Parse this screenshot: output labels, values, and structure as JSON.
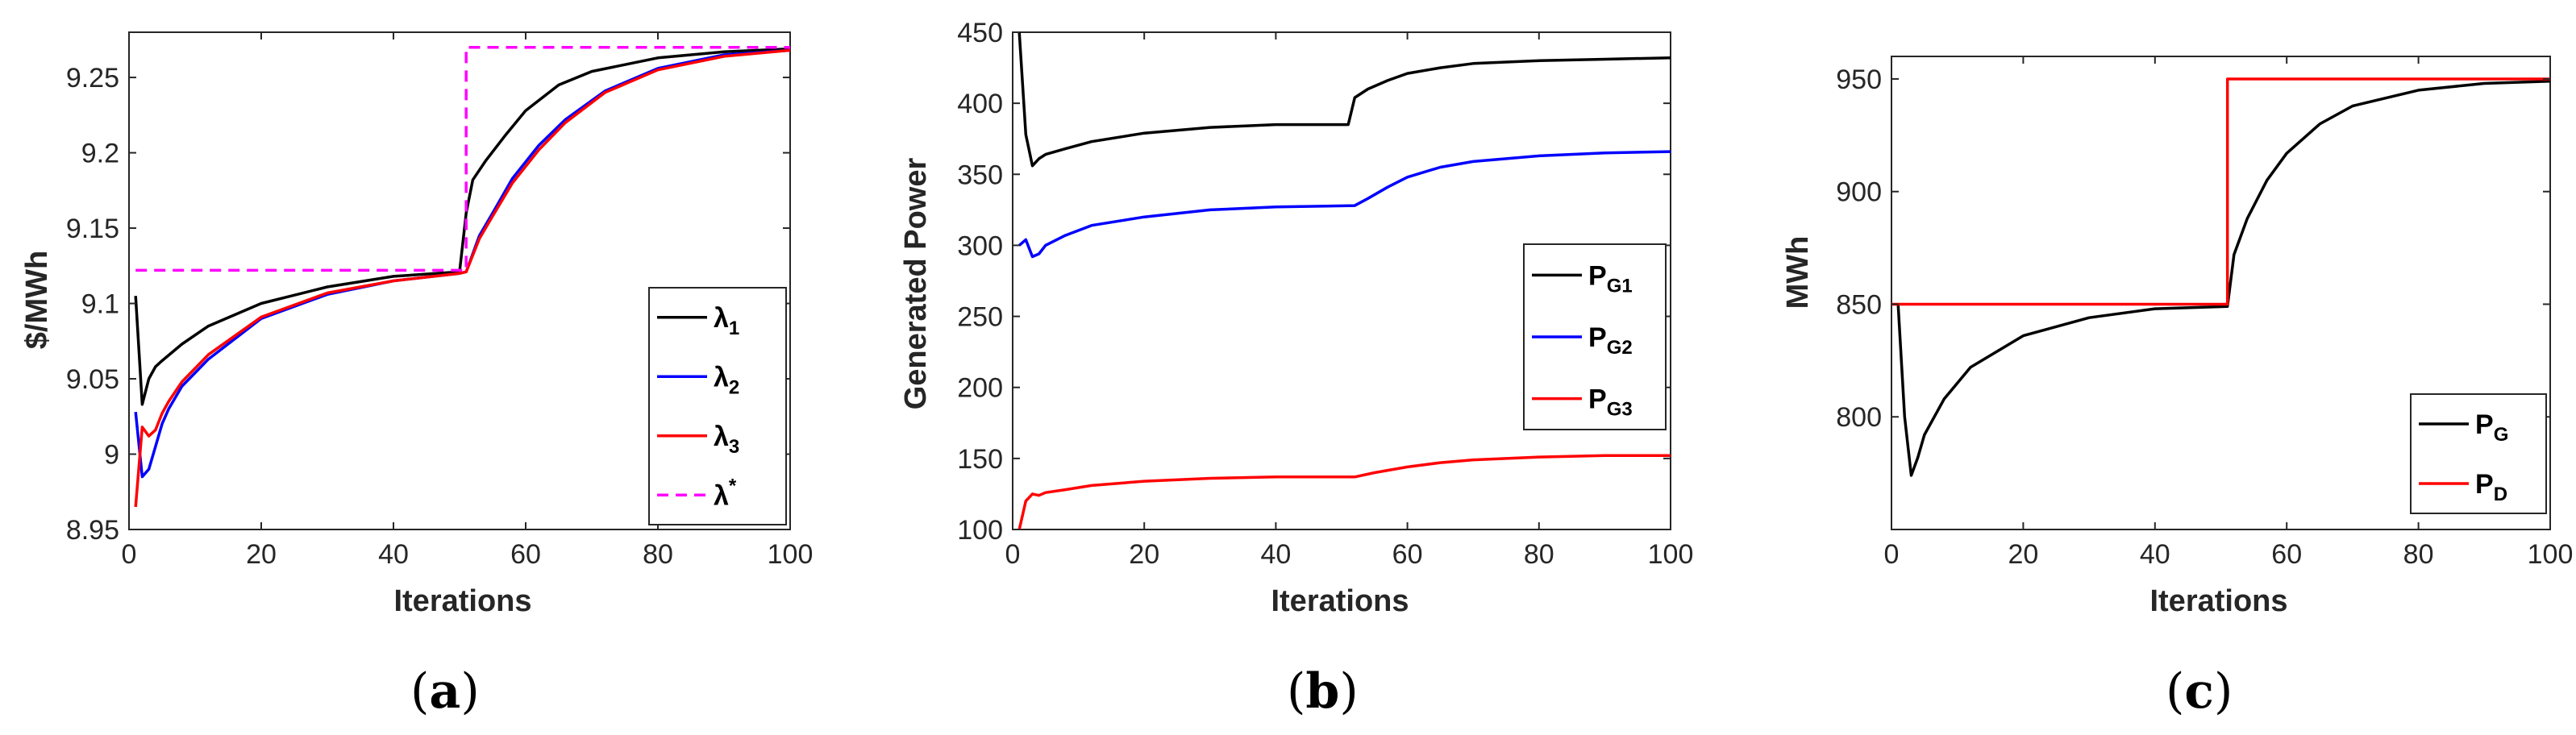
{
  "panels": [
    {
      "id": "a",
      "panel_label": {
        "open": "(",
        "letter": "a",
        "close": ")"
      }
    },
    {
      "id": "b",
      "panel_label": {
        "open": "(",
        "letter": "b",
        "close": ")"
      }
    },
    {
      "id": "c",
      "panel_label": {
        "open": "(",
        "letter": "c",
        "close": ")"
      }
    }
  ],
  "chart_data": [
    {
      "type": "line",
      "xlabel": "Iterations",
      "ylabel": "$/MWh",
      "xlim": [
        0,
        100
      ],
      "ylim": [
        8.95,
        9.28
      ],
      "xticks": [
        "0",
        "20",
        "40",
        "60",
        "80",
        "100"
      ],
      "yticks": [
        "8.95",
        "9",
        "9.05",
        "9.1",
        "9.15",
        "9.2",
        "9.25"
      ],
      "ytick_values": [
        8.95,
        9.0,
        9.05,
        9.1,
        9.15,
        9.2,
        9.25
      ],
      "legend": {
        "placement": "bottom-right"
      },
      "series": [
        {
          "name": "λ",
          "sub": "1",
          "sup": "",
          "color": "#000000",
          "dash": "solid",
          "x": [
            1,
            2,
            3,
            4,
            5,
            8,
            12,
            20,
            30,
            40,
            50,
            51,
            52,
            54,
            57,
            60,
            65,
            70,
            80,
            90,
            100
          ],
          "y": [
            9.105,
            9.033,
            9.05,
            9.058,
            9.062,
            9.073,
            9.085,
            9.1,
            9.111,
            9.118,
            9.121,
            9.16,
            9.182,
            9.195,
            9.212,
            9.228,
            9.245,
            9.254,
            9.263,
            9.267,
            9.269
          ]
        },
        {
          "name": "λ",
          "sub": "2",
          "sup": "",
          "color": "#0000ff",
          "dash": "solid",
          "x": [
            1,
            2,
            3,
            4,
            5,
            6,
            8,
            12,
            20,
            30,
            40,
            50,
            51,
            53,
            55,
            58,
            62,
            66,
            72,
            80,
            90,
            100
          ],
          "y": [
            9.028,
            8.985,
            8.99,
            9.005,
            9.02,
            9.03,
            9.045,
            9.063,
            9.09,
            9.106,
            9.115,
            9.12,
            9.121,
            9.145,
            9.16,
            9.183,
            9.205,
            9.222,
            9.241,
            9.256,
            9.265,
            9.268
          ]
        },
        {
          "name": "λ",
          "sub": "3",
          "sup": "",
          "color": "#ff0000",
          "dash": "solid",
          "x": [
            1,
            2,
            3,
            4,
            5,
            6,
            8,
            12,
            20,
            30,
            40,
            50,
            51,
            53,
            55,
            58,
            62,
            66,
            72,
            80,
            90,
            100
          ],
          "y": [
            8.965,
            9.018,
            9.012,
            9.016,
            9.027,
            9.035,
            9.048,
            9.066,
            9.091,
            9.107,
            9.115,
            9.12,
            9.121,
            9.143,
            9.158,
            9.18,
            9.202,
            9.22,
            9.24,
            9.255,
            9.264,
            9.268
          ]
        },
        {
          "name": "λ",
          "sub": "",
          "sup": "*",
          "color": "#ff00ff",
          "dash": "dashed",
          "x": [
            1,
            51,
            51,
            100
          ],
          "y": [
            9.122,
            9.122,
            9.27,
            9.27
          ]
        }
      ]
    },
    {
      "type": "line",
      "xlabel": "Iterations",
      "ylabel": "Generated Power",
      "xlim": [
        0,
        100
      ],
      "ylim": [
        100,
        450
      ],
      "xticks": [
        "0",
        "20",
        "40",
        "60",
        "80",
        "100"
      ],
      "yticks": [
        "100",
        "150",
        "200",
        "250",
        "300",
        "350",
        "400",
        "450"
      ],
      "ytick_values": [
        100,
        150,
        200,
        250,
        300,
        350,
        400,
        450
      ],
      "legend": {
        "placement": "middle-right"
      },
      "series": [
        {
          "name": "P",
          "sub": "G1",
          "sup": "",
          "color": "#000000",
          "dash": "solid",
          "x": [
            1,
            2,
            3,
            4,
            5,
            8,
            12,
            20,
            30,
            40,
            51,
            52,
            54,
            57,
            60,
            65,
            70,
            80,
            90,
            100
          ],
          "y": [
            450,
            378,
            356,
            361,
            364,
            368,
            373,
            379,
            383,
            385,
            385,
            404,
            410,
            416,
            421,
            425,
            428,
            430,
            431,
            432
          ]
        },
        {
          "name": "P",
          "sub": "G2",
          "sup": "",
          "color": "#0000ff",
          "dash": "solid",
          "x": [
            1,
            2,
            3,
            4,
            5,
            8,
            12,
            20,
            30,
            40,
            52,
            54,
            57,
            60,
            65,
            70,
            80,
            90,
            100
          ],
          "y": [
            300,
            304,
            292,
            294,
            300,
            307,
            314,
            320,
            325,
            327,
            328,
            333,
            341,
            348,
            355,
            359,
            363,
            365,
            366
          ]
        },
        {
          "name": "P",
          "sub": "G3",
          "sup": "",
          "color": "#ff0000",
          "dash": "solid",
          "x": [
            1,
            2,
            3,
            4,
            5,
            8,
            12,
            20,
            30,
            40,
            52,
            55,
            60,
            65,
            70,
            80,
            90,
            100
          ],
          "y": [
            100,
            120,
            125,
            124,
            126,
            128,
            131,
            134,
            136,
            137,
            137,
            140,
            144,
            147,
            149,
            151,
            152,
            152
          ]
        }
      ]
    },
    {
      "type": "line",
      "xlabel": "Iterations",
      "ylabel": "MWh",
      "xlim": [
        0,
        100
      ],
      "ylim": [
        750,
        960
      ],
      "xticks": [
        "0",
        "20",
        "40",
        "60",
        "80",
        "100"
      ],
      "yticks": [
        "800",
        "850",
        "900",
        "950"
      ],
      "ytick_values": [
        800,
        850,
        900,
        950
      ],
      "legend": {
        "placement": "bottom-right"
      },
      "series": [
        {
          "name": "P",
          "sub": "G",
          "sup": "",
          "color": "#000000",
          "dash": "solid",
          "x": [
            1,
            2,
            3,
            4,
            5,
            8,
            12,
            20,
            30,
            40,
            51,
            52,
            54,
            57,
            60,
            65,
            70,
            80,
            90,
            100
          ],
          "y": [
            850,
            800,
            774,
            782,
            792,
            808,
            822,
            836,
            844,
            848,
            849,
            872,
            888,
            905,
            917,
            930,
            938,
            945,
            948,
            949
          ]
        },
        {
          "name": "P",
          "sub": "D",
          "sup": "",
          "color": "#ff0000",
          "dash": "solid",
          "x": [
            0,
            51,
            51,
            100
          ],
          "y": [
            850,
            850,
            950,
            950
          ]
        }
      ]
    }
  ]
}
